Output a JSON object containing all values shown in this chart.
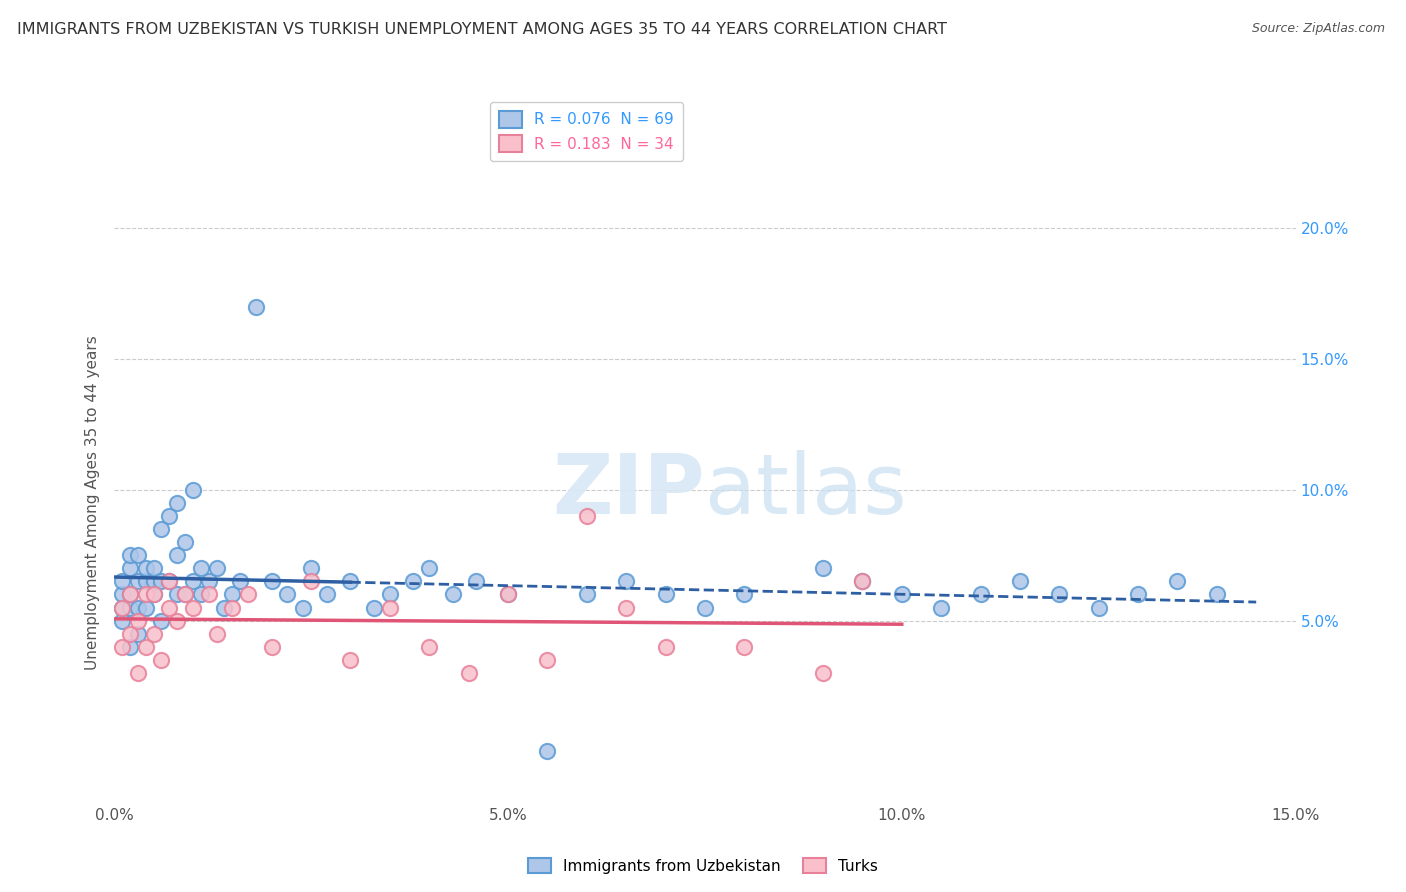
{
  "title": "IMMIGRANTS FROM UZBEKISTAN VS TURKISH UNEMPLOYMENT AMONG AGES 35 TO 44 YEARS CORRELATION CHART",
  "source": "Source: ZipAtlas.com",
  "ylabel": "Unemployment Among Ages 35 to 44 years",
  "xlim": [
    0.0,
    0.15
  ],
  "ylim": [
    -0.02,
    0.21
  ],
  "xtick_labels": [
    "0.0%",
    "5.0%",
    "10.0%",
    "15.0%"
  ],
  "xtick_vals": [
    0.0,
    0.05,
    0.1,
    0.15
  ],
  "ytick_labels": [
    "5.0%",
    "10.0%",
    "15.0%",
    "20.0%"
  ],
  "ytick_vals": [
    0.05,
    0.1,
    0.15,
    0.2
  ],
  "legend1_label": "R = 0.076  N = 69",
  "legend2_label": "R = 0.183  N = 34",
  "legend1_color": "#5b9bd5",
  "legend2_color": "#f4a3b5",
  "trendline1_color": "#2e5fa3",
  "trendline2_color": "#e05575",
  "background_color": "#ffffff",
  "grid_color": "#cccccc",
  "series1_x": [
    0.001,
    0.001,
    0.001,
    0.001,
    0.002,
    0.002,
    0.002,
    0.002,
    0.002,
    0.003,
    0.003,
    0.003,
    0.003,
    0.004,
    0.004,
    0.004,
    0.005,
    0.005,
    0.005,
    0.006,
    0.006,
    0.006,
    0.007,
    0.007,
    0.008,
    0.008,
    0.008,
    0.009,
    0.009,
    0.01,
    0.01,
    0.011,
    0.011,
    0.012,
    0.013,
    0.014,
    0.015,
    0.016,
    0.018,
    0.02,
    0.022,
    0.024,
    0.025,
    0.027,
    0.03,
    0.033,
    0.035,
    0.038,
    0.04,
    0.043,
    0.046,
    0.05,
    0.055,
    0.06,
    0.065,
    0.07,
    0.075,
    0.08,
    0.09,
    0.095,
    0.1,
    0.105,
    0.11,
    0.115,
    0.12,
    0.125,
    0.13,
    0.135,
    0.14
  ],
  "series1_y": [
    0.05,
    0.055,
    0.06,
    0.065,
    0.04,
    0.055,
    0.06,
    0.07,
    0.075,
    0.045,
    0.055,
    0.065,
    0.075,
    0.055,
    0.065,
    0.07,
    0.06,
    0.065,
    0.07,
    0.05,
    0.065,
    0.085,
    0.065,
    0.09,
    0.06,
    0.075,
    0.095,
    0.06,
    0.08,
    0.065,
    0.1,
    0.06,
    0.07,
    0.065,
    0.07,
    0.055,
    0.06,
    0.065,
    0.17,
    0.065,
    0.06,
    0.055,
    0.07,
    0.06,
    0.065,
    0.055,
    0.06,
    0.065,
    0.07,
    0.06,
    0.065,
    0.06,
    0.0,
    0.06,
    0.065,
    0.06,
    0.055,
    0.06,
    0.07,
    0.065,
    0.06,
    0.055,
    0.06,
    0.065,
    0.06,
    0.055,
    0.06,
    0.065,
    0.06
  ],
  "series2_x": [
    0.001,
    0.001,
    0.002,
    0.002,
    0.003,
    0.003,
    0.004,
    0.004,
    0.005,
    0.005,
    0.006,
    0.007,
    0.007,
    0.008,
    0.009,
    0.01,
    0.012,
    0.013,
    0.015,
    0.017,
    0.02,
    0.025,
    0.03,
    0.035,
    0.04,
    0.045,
    0.05,
    0.055,
    0.06,
    0.065,
    0.07,
    0.08,
    0.09,
    0.095
  ],
  "series2_y": [
    0.04,
    0.055,
    0.045,
    0.06,
    0.03,
    0.05,
    0.04,
    0.06,
    0.045,
    0.06,
    0.035,
    0.055,
    0.065,
    0.05,
    0.06,
    0.055,
    0.06,
    0.045,
    0.055,
    0.06,
    0.04,
    0.065,
    0.035,
    0.055,
    0.04,
    0.03,
    0.06,
    0.035,
    0.09,
    0.055,
    0.04,
    0.04,
    0.03,
    0.065
  ]
}
